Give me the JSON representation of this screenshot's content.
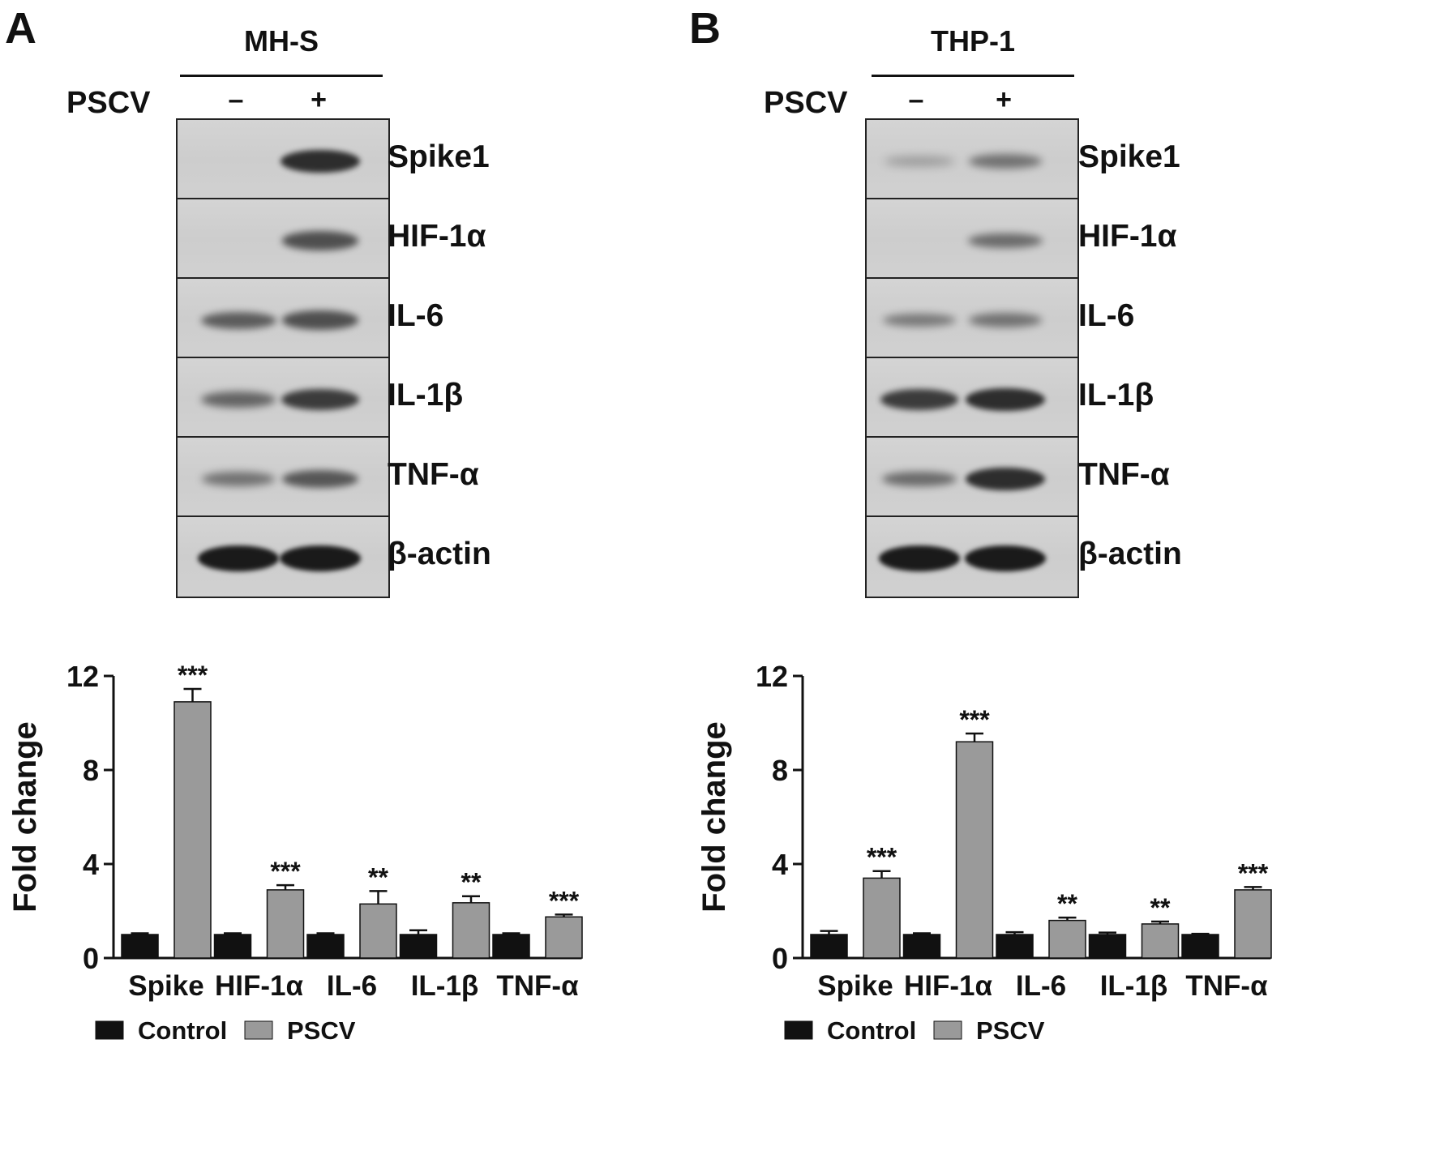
{
  "figure": {
    "panels": [
      {
        "letter": "A",
        "cell_line": "MH-S",
        "treatment_label": "PSCV",
        "lanes": [
          "–",
          "+"
        ],
        "blot_rows": [
          {
            "label": "Spike1",
            "bands": [
              0.0,
              0.85
            ]
          },
          {
            "label": "HIF-1α",
            "bands": [
              0.0,
              0.6
            ]
          },
          {
            "label": "IL-6",
            "bands": [
              0.5,
              0.6
            ]
          },
          {
            "label": "IL-1β",
            "bands": [
              0.45,
              0.75
            ]
          },
          {
            "label": "TNF-α",
            "bands": [
              0.35,
              0.55
            ]
          },
          {
            "label": "β-actin",
            "bands": [
              1.0,
              1.0
            ]
          }
        ]
      },
      {
        "letter": "B",
        "cell_line": "THP-1",
        "treatment_label": "PSCV",
        "lanes": [
          "–",
          "+"
        ],
        "blot_rows": [
          {
            "label": "Spike1",
            "bands": [
              0.05,
              0.35
            ]
          },
          {
            "label": "HIF-1α",
            "bands": [
              0.0,
              0.4
            ]
          },
          {
            "label": "IL-6",
            "bands": [
              0.3,
              0.35
            ]
          },
          {
            "label": "IL-1β",
            "bands": [
              0.75,
              0.85
            ]
          },
          {
            "label": "TNF-α",
            "bands": [
              0.4,
              0.85
            ]
          },
          {
            "label": "β-actin",
            "bands": [
              1.0,
              1.0
            ]
          }
        ]
      }
    ]
  },
  "colors": {
    "control": "#111111",
    "pscv": "#9a9a9a",
    "band": "#1a1a1a"
  },
  "chart_data": [
    {
      "type": "bar",
      "panel": "A",
      "categories": [
        "Spike",
        "HIF-1α",
        "IL-6",
        "IL-1β",
        "TNF-α"
      ],
      "series": [
        {
          "name": "Control",
          "values": [
            1.0,
            1.0,
            1.0,
            1.0,
            1.0
          ],
          "errors": [
            0.05,
            0.05,
            0.05,
            0.18,
            0.05
          ]
        },
        {
          "name": "PSCV",
          "values": [
            10.9,
            2.9,
            2.3,
            2.35,
            1.75
          ],
          "errors": [
            0.55,
            0.2,
            0.55,
            0.28,
            0.1
          ]
        }
      ],
      "significance": [
        "***",
        "***",
        "**",
        "**",
        "***"
      ],
      "ylabel": "Fold change",
      "ylim": [
        0,
        12
      ],
      "yticks": [
        0,
        4,
        8,
        12
      ],
      "legend": [
        "Control",
        "PSCV"
      ],
      "legend_position": "bottom-left"
    },
    {
      "type": "bar",
      "panel": "B",
      "categories": [
        "Spike",
        "HIF-1α",
        "IL-6",
        "IL-1β",
        "TNF-α"
      ],
      "series": [
        {
          "name": "Control",
          "values": [
            1.0,
            1.0,
            1.0,
            1.0,
            1.0
          ],
          "errors": [
            0.15,
            0.05,
            0.1,
            0.08,
            0.03
          ]
        },
        {
          "name": "PSCV",
          "values": [
            3.4,
            9.2,
            1.6,
            1.45,
            2.9
          ],
          "errors": [
            0.3,
            0.35,
            0.12,
            0.1,
            0.12
          ]
        }
      ],
      "significance": [
        "***",
        "***",
        "**",
        "**",
        "***"
      ],
      "ylabel": "Fold change",
      "ylim": [
        0,
        12
      ],
      "yticks": [
        0,
        4,
        8,
        12
      ],
      "legend": [
        "Control",
        "PSCV"
      ],
      "legend_position": "bottom-left"
    }
  ]
}
